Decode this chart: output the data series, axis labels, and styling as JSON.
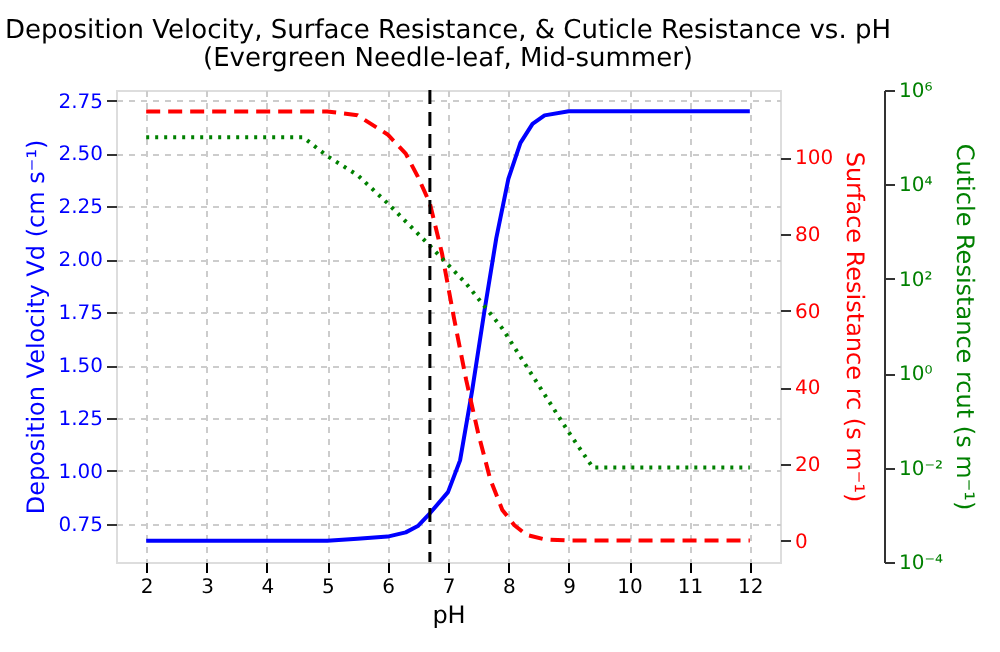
{
  "chart_data": {
    "type": "line",
    "title": "Deposition Velocity, Surface Resistance, & Cuticle Resistance vs. pH",
    "subtitle": "(Evergreen Needle-leaf, Mid-summer)",
    "xlabel": "pH",
    "ylabel": "Deposition Velocity Vd (cm s⁻¹)",
    "y2label": "Surface Resistance rc (s m⁻¹)",
    "y3label": "Cuticle Resistance rcut (s m⁻¹)",
    "xlim": [
      1.5,
      12.5
    ],
    "xticks": [
      2,
      3,
      4,
      5,
      6,
      7,
      8,
      9,
      10,
      11,
      12
    ],
    "ylim": [
      0.57,
      2.8
    ],
    "yticks": [
      0.75,
      {
        "value": 1,
        "label": "1.00"
      },
      1.25,
      {
        "value": 1.5,
        "label": "1.50"
      },
      1.75,
      {
        "value": 2,
        "label": "2.00"
      },
      2.25,
      {
        "value": 2.5,
        "label": "2.50"
      },
      2.75
    ],
    "y2lim": [
      -5.6,
      117.6
    ],
    "y2ticks": [
      0,
      20,
      40,
      60,
      80,
      100
    ],
    "y3lim": [
      0.0001,
      1000000
    ],
    "y3ticks": [
      {
        "value": 0.0001,
        "label": "10⁻⁴"
      },
      {
        "value": 0.01,
        "label": "10⁻²"
      },
      {
        "value": 1,
        "label": "10⁰"
      },
      {
        "value": 100,
        "label": "10²"
      },
      {
        "value": 10000,
        "label": "10⁴"
      },
      {
        "value": 1000000,
        "label": "10⁶"
      }
    ],
    "log": "y3",
    "grid": true,
    "ref_lines": [
      {
        "axis": "x",
        "value": 6.7,
        "color": "#000000",
        "line_style": "dashed"
      }
    ],
    "series": [
      {
        "axis": "y",
        "color": "#0000ff",
        "line_style": "solid",
        "x": [
          2,
          3,
          4,
          5,
          5.5,
          6.0,
          6.3,
          6.5,
          6.7,
          7.0,
          7.2,
          7.4,
          7.6,
          7.8,
          8.0,
          8.2,
          8.4,
          8.6,
          9.0,
          10,
          11,
          12
        ],
        "values": [
          0.67,
          0.67,
          0.67,
          0.67,
          0.68,
          0.69,
          0.71,
          0.74,
          0.8,
          0.9,
          1.05,
          1.38,
          1.75,
          2.1,
          2.38,
          2.55,
          2.64,
          2.68,
          2.7,
          2.7,
          2.7,
          2.7
        ]
      },
      {
        "axis": "y2",
        "color": "#ff0000",
        "line_style": "dashed",
        "x": [
          2,
          3,
          4,
          5,
          5.5,
          6.0,
          6.3,
          6.5,
          6.7,
          6.9,
          7.1,
          7.3,
          7.5,
          7.7,
          7.9,
          8.1,
          8.3,
          8.6,
          9.0,
          10,
          11,
          12
        ],
        "values": [
          112,
          112,
          112,
          112,
          111,
          106,
          101,
          95,
          88,
          75,
          58,
          42,
          28,
          16,
          8,
          4,
          1.5,
          0.3,
          0,
          0,
          0,
          0
        ]
      },
      {
        "axis": "y3",
        "color": "#008000",
        "line_style": "dotted",
        "x": [
          2,
          3,
          4,
          4.6,
          5.0,
          5.5,
          6.0,
          6.7,
          7.3,
          7.9,
          8.5,
          9.0,
          9.4,
          10,
          11,
          12
        ],
        "values": [
          100000,
          100000,
          100000,
          100000,
          39800,
          15800,
          3980,
          501,
          79.4,
          8.9,
          0.56,
          0.056,
          0.01,
          0.01,
          0.01,
          0.01
        ]
      }
    ]
  }
}
